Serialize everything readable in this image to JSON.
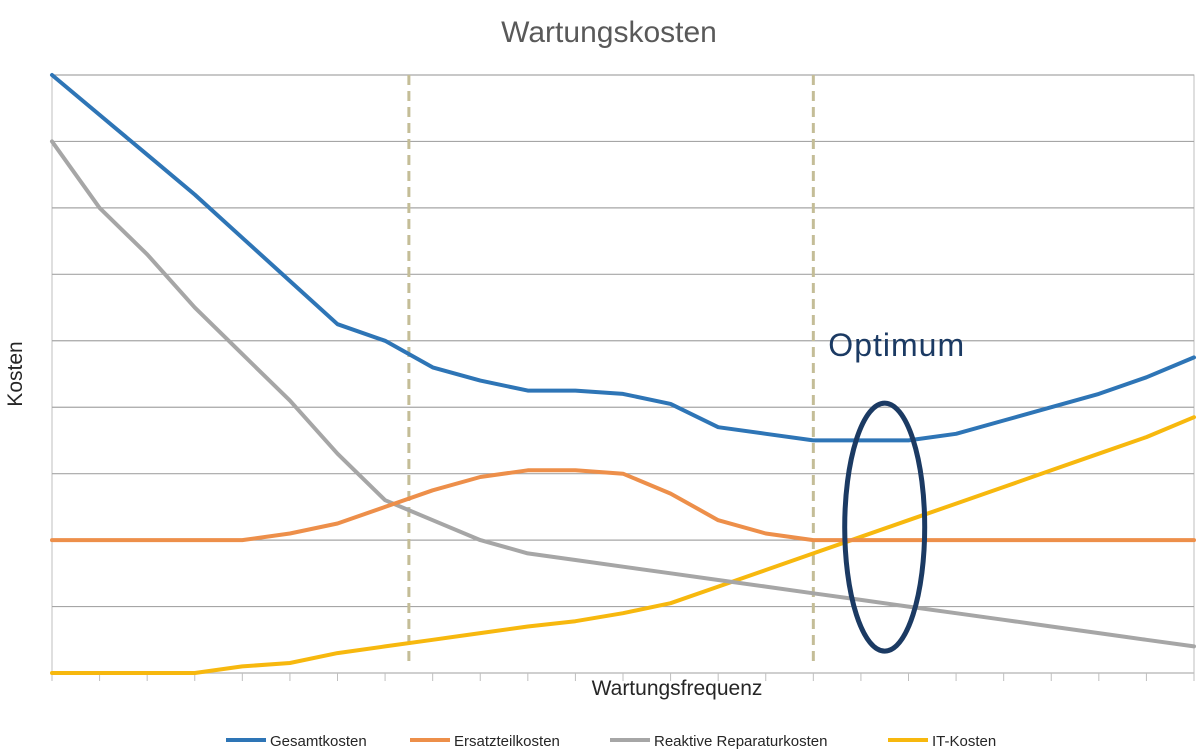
{
  "chart_data": {
    "type": "line",
    "title": "Wartungskosten",
    "xlabel": "Wartungsfrequenz",
    "ylabel": "Kosten",
    "x": [
      0,
      1,
      2,
      3,
      4,
      5,
      6,
      7,
      8,
      9,
      10,
      11,
      12,
      13,
      14,
      15,
      16,
      17,
      18,
      19,
      20,
      21,
      22,
      23,
      24
    ],
    "xlim": [
      0,
      24
    ],
    "ylim": [
      0,
      9
    ],
    "grid": true,
    "legend_position": "bottom",
    "series": [
      {
        "name": "Gesamtkosten",
        "color": "#2e75b6",
        "values": [
          9.0,
          8.4,
          7.8,
          7.2,
          6.55,
          5.9,
          5.25,
          5.0,
          4.6,
          4.4,
          4.25,
          4.25,
          4.2,
          4.05,
          3.7,
          3.6,
          3.5,
          3.5,
          3.5,
          3.6,
          3.8,
          4.0,
          4.2,
          4.45,
          4.75
        ]
      },
      {
        "name": "Ersatzteilkosten",
        "color": "#ed8f4a",
        "values": [
          2.0,
          2.0,
          2.0,
          2.0,
          2.0,
          2.1,
          2.25,
          2.5,
          2.75,
          2.95,
          3.05,
          3.05,
          3.0,
          2.7,
          2.3,
          2.1,
          2.0,
          2.0,
          2.0,
          2.0,
          2.0,
          2.0,
          2.0,
          2.0,
          2.0
        ]
      },
      {
        "name": "Reaktive Reparaturkosten",
        "color": "#a6a6a6",
        "values": [
          8.0,
          7.0,
          6.3,
          5.5,
          4.8,
          4.1,
          3.3,
          2.6,
          2.3,
          2.0,
          1.8,
          1.7,
          1.6,
          1.5,
          1.4,
          1.3,
          1.2,
          1.1,
          1.0,
          0.9,
          0.8,
          0.7,
          0.6,
          0.5,
          0.4
        ]
      },
      {
        "name": "IT-Kosten",
        "color": "#f7b80e",
        "values": [
          0.0,
          0.0,
          0.0,
          0.0,
          0.1,
          0.15,
          0.3,
          0.4,
          0.5,
          0.6,
          0.7,
          0.78,
          0.9,
          1.05,
          1.3,
          1.55,
          1.8,
          2.05,
          2.3,
          2.55,
          2.8,
          3.05,
          3.3,
          3.55,
          3.85
        ]
      }
    ],
    "reference_lines": {
      "x": [
        7.5,
        16
      ],
      "style": "dashed",
      "color": "#c4bd97"
    },
    "annotation": {
      "text": "Optimum",
      "target_x": 17.5,
      "target_y": 2.0,
      "shape": "ellipse",
      "color": "#1b3a63"
    }
  }
}
